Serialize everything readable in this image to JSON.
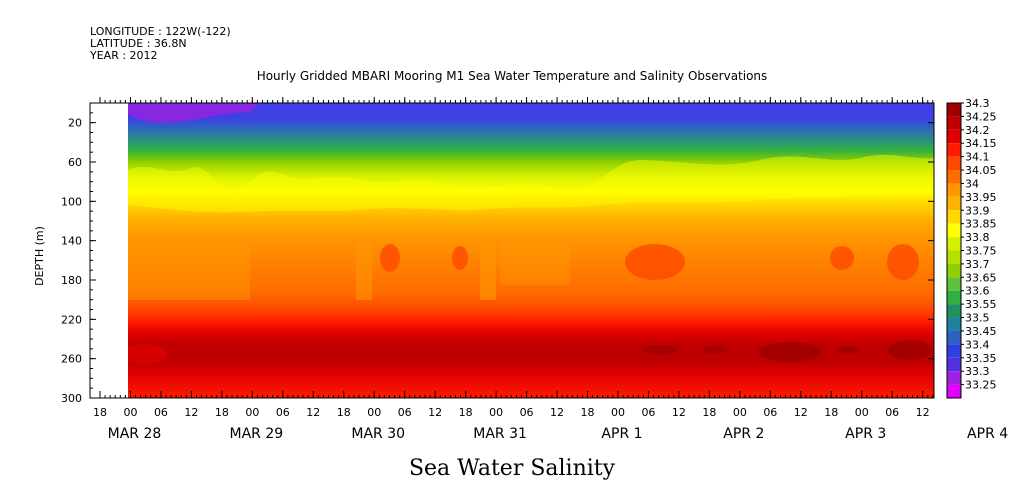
{
  "header": {
    "longitude": "LONGITUDE : 122W(-122)",
    "latitude": "LATITUDE : 36.8N",
    "year": "YEAR : 2012",
    "title": "Hourly Gridded MBARI Mooring M1 Sea Water Temperature and Salinity Observations"
  },
  "chart_data": {
    "type": "heatmap",
    "title": "Hourly Gridded MBARI Mooring M1 Sea Water Temperature and Salinity Observations",
    "xlabel": "Sea Water Salinity",
    "ylabel": "DEPTH (m)",
    "y_range": [
      0,
      300
    ],
    "y_ticks": [
      "20",
      "60",
      "100",
      "140",
      "180",
      "220",
      "260",
      "300"
    ],
    "x_hour_labels": [
      "18",
      "00",
      "06",
      "12",
      "18",
      "00",
      "06",
      "12",
      "18",
      "00",
      "06",
      "12",
      "18",
      "00",
      "06",
      "12",
      "18",
      "00",
      "06",
      "12",
      "18",
      "00",
      "06",
      "12",
      "18",
      "00",
      "06",
      "12"
    ],
    "x_date_labels": [
      "MAR 28",
      "MAR 29",
      "MAR 30",
      "MAR 31",
      "APR  1",
      "APR  2",
      "APR  3",
      "APR  4"
    ],
    "colorbar_levels": [
      "34.3",
      "34.25",
      "34.2",
      "34.15",
      "34.1",
      "34.05",
      "34",
      "33.95",
      "33.9",
      "33.85",
      "33.8",
      "33.75",
      "33.7",
      "33.65",
      "33.6",
      "33.55",
      "33.5",
      "33.45",
      "33.4",
      "33.35",
      "33.3",
      "33.25"
    ],
    "colorbar_colors": [
      "#a00000",
      "#c00000",
      "#e00000",
      "#ff1c00",
      "#ff4800",
      "#ff6c00",
      "#ff9800",
      "#ffb400",
      "#ffd800",
      "#ffff00",
      "#d8f000",
      "#b4e000",
      "#90d000",
      "#60c040",
      "#30b040",
      "#209060",
      "#2080a0",
      "#3060c0",
      "#3040e0",
      "#5030e0",
      "#a020e0",
      "#e000ff"
    ],
    "profile": [
      {
        "depth_range": "0-20",
        "salinity": 33.4
      },
      {
        "depth_range": "20-40",
        "salinity": 33.45
      },
      {
        "depth_range": "40-60",
        "salinity": 33.55
      },
      {
        "depth_range": "60-80",
        "salinity": 33.7
      },
      {
        "depth_range": "80-100",
        "salinity": 33.85
      },
      {
        "depth_range": "100-120",
        "salinity": 33.95
      },
      {
        "depth_range": "120-140",
        "salinity": 34.0
      },
      {
        "depth_range": "140-200",
        "salinity": 34.05
      },
      {
        "depth_range": "200-230",
        "salinity": 34.15
      },
      {
        "depth_range": "230-270",
        "salinity": 34.25
      },
      {
        "depth_range": "270-300",
        "salinity": 34.15
      }
    ]
  }
}
